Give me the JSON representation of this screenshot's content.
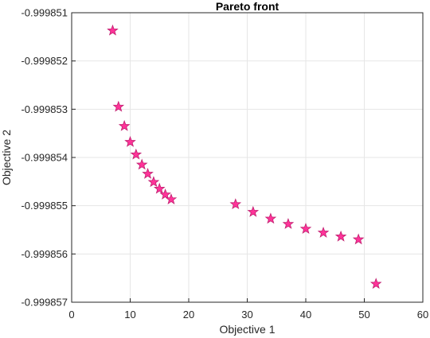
{
  "chart_data": {
    "type": "scatter",
    "title": "Pareto front",
    "xlabel": "Objective 1",
    "ylabel": "Objective 2",
    "xlim": [
      0,
      60
    ],
    "ylim": [
      -0.999857,
      -0.999851
    ],
    "xticks": [
      0,
      10,
      20,
      30,
      40,
      50,
      60
    ],
    "xtick_labels": [
      "0",
      "10",
      "20",
      "30",
      "40",
      "50",
      "60"
    ],
    "yticks": [
      -0.999851,
      -0.999852,
      -0.999853,
      -0.999854,
      -0.999855,
      -0.999856,
      -0.999857
    ],
    "ytick_labels": [
      "-0.999851",
      "-0.999852",
      "-0.999853",
      "-0.999854",
      "-0.999855",
      "-0.999856",
      "-0.999857"
    ],
    "grid": true,
    "marker": "pentagram",
    "marker_fill": "#ff3399",
    "marker_edge": "#c02070",
    "points": [
      {
        "x": 7,
        "y": -0.99985137
      },
      {
        "x": 8,
        "y": -0.99985295
      },
      {
        "x": 9,
        "y": -0.99985335
      },
      {
        "x": 10,
        "y": -0.99985368
      },
      {
        "x": 11,
        "y": -0.99985394
      },
      {
        "x": 12,
        "y": -0.99985415
      },
      {
        "x": 13,
        "y": -0.99985434
      },
      {
        "x": 14,
        "y": -0.99985451
      },
      {
        "x": 15,
        "y": -0.99985465
      },
      {
        "x": 16,
        "y": -0.99985477
      },
      {
        "x": 17,
        "y": -0.99985487
      },
      {
        "x": 28,
        "y": -0.99985497
      },
      {
        "x": 31,
        "y": -0.99985513
      },
      {
        "x": 34,
        "y": -0.99985527
      },
      {
        "x": 37,
        "y": -0.99985538
      },
      {
        "x": 40,
        "y": -0.99985548
      },
      {
        "x": 43,
        "y": -0.99985556
      },
      {
        "x": 46,
        "y": -0.99985564
      },
      {
        "x": 49,
        "y": -0.9998557
      },
      {
        "x": 52,
        "y": -0.99985662
      }
    ]
  }
}
